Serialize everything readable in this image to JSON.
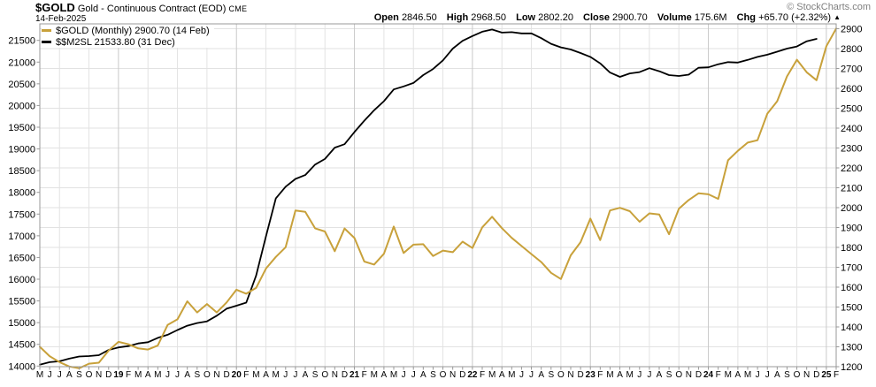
{
  "header": {
    "symbol": "$GOLD",
    "title": "Gold - Continuous Contract (EOD)",
    "exchange": "CME",
    "date": "14-Feb-2025",
    "copyright": "© StockCharts.com",
    "quote": {
      "open_label": "Open",
      "open": "2846.50",
      "high_label": "High",
      "high": "2968.50",
      "low_label": "Low",
      "low": "2802.20",
      "close_label": "Close",
      "close": "2900.70",
      "volume_label": "Volume",
      "volume": "175.6M",
      "chg_label": "Chg",
      "chg": "+65.70 (+2.32%)",
      "direction_icon": "up-triangle",
      "direction_glyph": "▲"
    }
  },
  "legend": [
    {
      "label": "$GOLD (Monthly) 2900.70 (14 Feb)",
      "color": "#C8A13B"
    },
    {
      "label": "$$M2SL 21533.80 (31 Dec)",
      "color": "#000000"
    }
  ],
  "colors": {
    "gold_line": "#C8A13B",
    "m2sl_line": "#000000",
    "grid": "#E2E2E2",
    "grid_year": "#C9C9C9",
    "border": "#999999",
    "copyright_gray": "#808080"
  },
  "chart_data": {
    "type": "line",
    "title": "$GOLD Gold - Continuous Contract (EOD) CME",
    "frequency": "monthly",
    "x_start": "May 2018",
    "x_end": "Feb 2025",
    "grid": true,
    "legend_position": "top-left",
    "x_labels": [
      "M",
      "J",
      "J",
      "A",
      "S",
      "O",
      "N",
      "D",
      "19",
      "F",
      "M",
      "A",
      "M",
      "J",
      "J",
      "A",
      "S",
      "O",
      "N",
      "D",
      "20",
      "F",
      "M",
      "A",
      "M",
      "J",
      "J",
      "A",
      "S",
      "O",
      "N",
      "D",
      "21",
      "F",
      "M",
      "A",
      "M",
      "J",
      "J",
      "A",
      "S",
      "O",
      "N",
      "D",
      "22",
      "F",
      "M",
      "A",
      "M",
      "J",
      "J",
      "A",
      "S",
      "O",
      "N",
      "D",
      "23",
      "F",
      "M",
      "A",
      "M",
      "J",
      "J",
      "A",
      "S",
      "O",
      "N",
      "D",
      "24",
      "F",
      "M",
      "A",
      "M",
      "J",
      "J",
      "A",
      "S",
      "O",
      "N",
      "D",
      "25",
      "F"
    ],
    "left_axis": {
      "label": "$$M2SL",
      "min": 14000,
      "max": 21500,
      "step": 500,
      "ticks": [
        14000,
        14500,
        15000,
        15500,
        16000,
        16500,
        17000,
        17500,
        18000,
        18500,
        19000,
        19500,
        20000,
        20500,
        21000,
        21500
      ]
    },
    "right_axis": {
      "label": "$GOLD",
      "min": 1200,
      "max": 2900,
      "step": 100,
      "ticks": [
        1200,
        1300,
        1400,
        1500,
        1600,
        1700,
        1800,
        1900,
        2000,
        2100,
        2200,
        2300,
        2400,
        2500,
        2600,
        2700,
        2800,
        2900
      ]
    },
    "series": [
      {
        "name": "$GOLD (Monthly)",
        "axis": "right",
        "color": "#C8A13B",
        "last_value": 2900.7,
        "last_date": "14 Feb",
        "values": [
          1300,
          1253,
          1223,
          1201,
          1192,
          1215,
          1220,
          1281,
          1325,
          1313,
          1292,
          1286,
          1306,
          1410,
          1438,
          1529,
          1473,
          1515,
          1473,
          1523,
          1587,
          1567,
          1596,
          1694,
          1752,
          1801,
          1986,
          1979,
          1896,
          1880,
          1781,
          1895,
          1847,
          1729,
          1714,
          1768,
          1905,
          1772,
          1814,
          1816,
          1757,
          1784,
          1776,
          1829,
          1797,
          1901,
          1954,
          1897,
          1848,
          1807,
          1766,
          1726,
          1672,
          1641,
          1760,
          1826,
          1945,
          1837,
          1986,
          1999,
          1982,
          1929,
          1971,
          1966,
          1866,
          1994,
          2038,
          2072,
          2067,
          2044,
          2238,
          2286,
          2327,
          2339,
          2473,
          2535,
          2660,
          2744,
          2681,
          2641,
          2812,
          2900.7
        ]
      },
      {
        "name": "$$M2SL",
        "axis": "left",
        "color": "#000000",
        "last_value": 21533.8,
        "last_date": "31 Dec",
        "values": [
          14030,
          14090,
          14110,
          14170,
          14220,
          14230,
          14250,
          14370,
          14430,
          14460,
          14520,
          14550,
          14650,
          14720,
          14830,
          14930,
          14990,
          15030,
          15160,
          15320,
          15390,
          15460,
          16080,
          16990,
          17860,
          18130,
          18310,
          18400,
          18640,
          18770,
          19030,
          19110,
          19390,
          19650,
          19890,
          20100,
          20370,
          20440,
          20520,
          20700,
          20840,
          21040,
          21310,
          21490,
          21600,
          21700,
          21750,
          21680,
          21690,
          21660,
          21660,
          21550,
          21420,
          21340,
          21290,
          21210,
          21120,
          20970,
          20760,
          20660,
          20740,
          20770,
          20860,
          20790,
          20700,
          20680,
          20710,
          20870,
          20880,
          20950,
          21000,
          20990,
          21050,
          21120,
          21170,
          21240,
          21310,
          21360,
          21480,
          21533.8
        ]
      }
    ]
  }
}
